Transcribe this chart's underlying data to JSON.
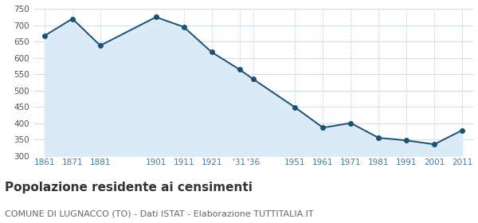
{
  "years": [
    1861,
    1871,
    1881,
    1901,
    1911,
    1921,
    1931,
    1936,
    1951,
    1961,
    1971,
    1981,
    1991,
    2001,
    2011
  ],
  "tick_years": [
    1861,
    1871,
    1881,
    1901,
    1911,
    1921,
    1931,
    1936,
    1951,
    1961,
    1971,
    1981,
    1991,
    2001,
    2011
  ],
  "tick_labels": [
    "1861",
    "1871",
    "1881",
    "1901",
    "1911",
    "1921",
    "'31",
    "'36",
    "1951",
    "1961",
    "1971",
    "1981",
    "1991",
    "2001",
    "2011"
  ],
  "values": [
    668,
    720,
    638,
    725,
    695,
    618,
    565,
    535,
    449,
    387,
    401,
    356,
    348,
    336,
    379
  ],
  "line_color": "#1a5276",
  "fill_color": "#daeaf6",
  "marker": "o",
  "marker_size": 4,
  "ylim": [
    300,
    750
  ],
  "yticks": [
    300,
    350,
    400,
    450,
    500,
    550,
    600,
    650,
    700,
    750
  ],
  "background_color": "#ffffff",
  "grid_color": "#c8d8e8",
  "title": "Popolazione residente ai censimenti",
  "subtitle": "COMUNE DI LUGNACCO (TO) - Dati ISTAT - Elaborazione TUTTITALIA.IT",
  "title_fontsize": 11,
  "subtitle_fontsize": 8,
  "tick_label_color": "#4477aa",
  "tick_fontsize": 7.5,
  "ytick_fontsize": 7.5,
  "ytick_color": "#555555"
}
